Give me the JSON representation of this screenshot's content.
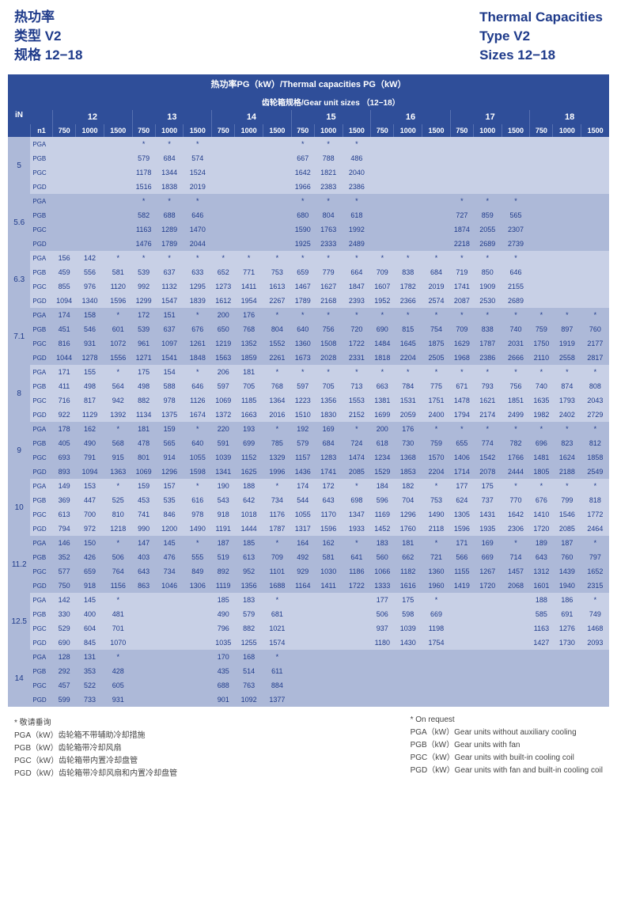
{
  "header": {
    "left": [
      "热功率",
      "类型  V2",
      "规格  12−18"
    ],
    "right": [
      "Thermal Capacities",
      "Type  V2",
      "Sizes  12−18"
    ]
  },
  "table_title": "热功率PG（kW）/Thermal capacities PG（kW）",
  "gear_title": "齿轮箱规格/Gear unit sizes （12−18）",
  "in_label": "iN",
  "n1_label": "n1",
  "sizes": [
    "12",
    "13",
    "14",
    "15",
    "16",
    "17",
    "18"
  ],
  "speeds": [
    "750",
    "1000",
    "1500"
  ],
  "pg_labels": [
    "PGA",
    "PGB",
    "PGC",
    "PGD"
  ],
  "bands": [
    {
      "ratio": "5",
      "band": 0,
      "rows": [
        [
          "",
          "",
          "",
          "*",
          "*",
          "*",
          "",
          "",
          "",
          "*",
          "*",
          "*",
          "",
          "",
          "",
          "",
          "",
          "",
          "",
          "",
          ""
        ],
        [
          "",
          "",
          "",
          "579",
          "684",
          "574",
          "",
          "",
          "",
          "667",
          "788",
          "486",
          "",
          "",
          "",
          "",
          "",
          "",
          "",
          "",
          ""
        ],
        [
          "",
          "",
          "",
          "1178",
          "1344",
          "1524",
          "",
          "",
          "",
          "1642",
          "1821",
          "2040",
          "",
          "",
          "",
          "",
          "",
          "",
          "",
          "",
          ""
        ],
        [
          "",
          "",
          "",
          "1516",
          "1838",
          "2019",
          "",
          "",
          "",
          "1966",
          "2383",
          "2386",
          "",
          "",
          "",
          "",
          "",
          "",
          "",
          "",
          ""
        ]
      ]
    },
    {
      "ratio": "5.6",
      "band": 1,
      "rows": [
        [
          "",
          "",
          "",
          "*",
          "*",
          "*",
          "",
          "",
          "",
          "*",
          "*",
          "*",
          "",
          "",
          "",
          "*",
          "*",
          "*",
          "",
          "",
          ""
        ],
        [
          "",
          "",
          "",
          "582",
          "688",
          "646",
          "",
          "",
          "",
          "680",
          "804",
          "618",
          "",
          "",
          "",
          "727",
          "859",
          "565",
          "",
          "",
          ""
        ],
        [
          "",
          "",
          "",
          "1163",
          "1289",
          "1470",
          "",
          "",
          "",
          "1590",
          "1763",
          "1992",
          "",
          "",
          "",
          "1874",
          "2055",
          "2307",
          "",
          "",
          ""
        ],
        [
          "",
          "",
          "",
          "1476",
          "1789",
          "2044",
          "",
          "",
          "",
          "1925",
          "2333",
          "2489",
          "",
          "",
          "",
          "2218",
          "2689",
          "2739",
          "",
          "",
          ""
        ]
      ]
    },
    {
      "ratio": "6.3",
      "band": 0,
      "rows": [
        [
          "156",
          "142",
          "*",
          "*",
          "*",
          "*",
          "*",
          "*",
          "*",
          "*",
          "*",
          "*",
          "*",
          "*",
          "*",
          "*",
          "*",
          "*",
          "",
          "",
          ""
        ],
        [
          "459",
          "556",
          "581",
          "539",
          "637",
          "633",
          "652",
          "771",
          "753",
          "659",
          "779",
          "664",
          "709",
          "838",
          "684",
          "719",
          "850",
          "646",
          "",
          "",
          ""
        ],
        [
          "855",
          "976",
          "1120",
          "992",
          "1132",
          "1295",
          "1273",
          "1411",
          "1613",
          "1467",
          "1627",
          "1847",
          "1607",
          "1782",
          "2019",
          "1741",
          "1909",
          "2155",
          "",
          "",
          ""
        ],
        [
          "1094",
          "1340",
          "1596",
          "1299",
          "1547",
          "1839",
          "1612",
          "1954",
          "2267",
          "1789",
          "2168",
          "2393",
          "1952",
          "2366",
          "2574",
          "2087",
          "2530",
          "2689",
          "",
          "",
          ""
        ]
      ]
    },
    {
      "ratio": "7.1",
      "band": 1,
      "rows": [
        [
          "174",
          "158",
          "*",
          "172",
          "151",
          "*",
          "200",
          "176",
          "*",
          "*",
          "*",
          "*",
          "*",
          "*",
          "*",
          "*",
          "*",
          "*",
          "*",
          "*",
          "*"
        ],
        [
          "451",
          "546",
          "601",
          "539",
          "637",
          "676",
          "650",
          "768",
          "804",
          "640",
          "756",
          "720",
          "690",
          "815",
          "754",
          "709",
          "838",
          "740",
          "759",
          "897",
          "760"
        ],
        [
          "816",
          "931",
          "1072",
          "961",
          "1097",
          "1261",
          "1219",
          "1352",
          "1552",
          "1360",
          "1508",
          "1722",
          "1484",
          "1645",
          "1875",
          "1629",
          "1787",
          "2031",
          "1750",
          "1919",
          "2177"
        ],
        [
          "1044",
          "1278",
          "1556",
          "1271",
          "1541",
          "1848",
          "1563",
          "1859",
          "2261",
          "1673",
          "2028",
          "2331",
          "1818",
          "2204",
          "2505",
          "1968",
          "2386",
          "2666",
          "2110",
          "2558",
          "2817"
        ]
      ]
    },
    {
      "ratio": "8",
      "band": 0,
      "rows": [
        [
          "171",
          "155",
          "*",
          "175",
          "154",
          "*",
          "206",
          "181",
          "*",
          "*",
          "*",
          "*",
          "*",
          "*",
          "*",
          "*",
          "*",
          "*",
          "*",
          "*",
          "*"
        ],
        [
          "411",
          "498",
          "564",
          "498",
          "588",
          "646",
          "597",
          "705",
          "768",
          "597",
          "705",
          "713",
          "663",
          "784",
          "775",
          "671",
          "793",
          "756",
          "740",
          "874",
          "808"
        ],
        [
          "716",
          "817",
          "942",
          "882",
          "978",
          "1126",
          "1069",
          "1185",
          "1364",
          "1223",
          "1356",
          "1553",
          "1381",
          "1531",
          "1751",
          "1478",
          "1621",
          "1851",
          "1635",
          "1793",
          "2043"
        ],
        [
          "922",
          "1129",
          "1392",
          "1134",
          "1375",
          "1674",
          "1372",
          "1663",
          "2016",
          "1510",
          "1830",
          "2152",
          "1699",
          "2059",
          "2400",
          "1794",
          "2174",
          "2499",
          "1982",
          "2402",
          "2729"
        ]
      ]
    },
    {
      "ratio": "9",
      "band": 1,
      "rows": [
        [
          "178",
          "162",
          "*",
          "181",
          "159",
          "*",
          "220",
          "193",
          "*",
          "192",
          "169",
          "*",
          "200",
          "176",
          "*",
          "*",
          "*",
          "*",
          "*",
          "*",
          "*"
        ],
        [
          "405",
          "490",
          "568",
          "478",
          "565",
          "640",
          "591",
          "699",
          "785",
          "579",
          "684",
          "724",
          "618",
          "730",
          "759",
          "655",
          "774",
          "782",
          "696",
          "823",
          "812"
        ],
        [
          "693",
          "791",
          "915",
          "801",
          "914",
          "1055",
          "1039",
          "1152",
          "1329",
          "1157",
          "1283",
          "1474",
          "1234",
          "1368",
          "1570",
          "1406",
          "1542",
          "1766",
          "1481",
          "1624",
          "1858"
        ],
        [
          "893",
          "1094",
          "1363",
          "1069",
          "1296",
          "1598",
          "1341",
          "1625",
          "1996",
          "1436",
          "1741",
          "2085",
          "1529",
          "1853",
          "2204",
          "1714",
          "2078",
          "2444",
          "1805",
          "2188",
          "2549"
        ]
      ]
    },
    {
      "ratio": "10",
      "band": 0,
      "rows": [
        [
          "149",
          "153",
          "*",
          "159",
          "157",
          "*",
          "190",
          "188",
          "*",
          "174",
          "172",
          "*",
          "184",
          "182",
          "*",
          "177",
          "175",
          "*",
          "*",
          "*",
          "*"
        ],
        [
          "369",
          "447",
          "525",
          "453",
          "535",
          "616",
          "543",
          "642",
          "734",
          "544",
          "643",
          "698",
          "596",
          "704",
          "753",
          "624",
          "737",
          "770",
          "676",
          "799",
          "818"
        ],
        [
          "613",
          "700",
          "810",
          "741",
          "846",
          "978",
          "918",
          "1018",
          "1176",
          "1055",
          "1170",
          "1347",
          "1169",
          "1296",
          "1490",
          "1305",
          "1431",
          "1642",
          "1410",
          "1546",
          "1772"
        ],
        [
          "794",
          "972",
          "1218",
          "990",
          "1200",
          "1490",
          "1191",
          "1444",
          "1787",
          "1317",
          "1596",
          "1933",
          "1452",
          "1760",
          "2118",
          "1596",
          "1935",
          "2306",
          "1720",
          "2085",
          "2464"
        ]
      ]
    },
    {
      "ratio": "11.2",
      "band": 1,
      "rows": [
        [
          "146",
          "150",
          "*",
          "147",
          "145",
          "*",
          "187",
          "185",
          "*",
          "164",
          "162",
          "*",
          "183",
          "181",
          "*",
          "171",
          "169",
          "*",
          "189",
          "187",
          "*"
        ],
        [
          "352",
          "426",
          "506",
          "403",
          "476",
          "555",
          "519",
          "613",
          "709",
          "492",
          "581",
          "641",
          "560",
          "662",
          "721",
          "566",
          "669",
          "714",
          "643",
          "760",
          "797"
        ],
        [
          "577",
          "659",
          "764",
          "643",
          "734",
          "849",
          "892",
          "952",
          "1101",
          "929",
          "1030",
          "1186",
          "1066",
          "1182",
          "1360",
          "1155",
          "1267",
          "1457",
          "1312",
          "1439",
          "1652"
        ],
        [
          "750",
          "918",
          "1156",
          "863",
          "1046",
          "1306",
          "1119",
          "1356",
          "1688",
          "1164",
          "1411",
          "1722",
          "1333",
          "1616",
          "1960",
          "1419",
          "1720",
          "2068",
          "1601",
          "1940",
          "2315"
        ]
      ]
    },
    {
      "ratio": "12.5",
      "band": 0,
      "rows": [
        [
          "142",
          "145",
          "*",
          "",
          "",
          "",
          "185",
          "183",
          "*",
          "",
          "",
          "",
          "177",
          "175",
          "*",
          "",
          "",
          "",
          "188",
          "186",
          "*"
        ],
        [
          "330",
          "400",
          "481",
          "",
          "",
          "",
          "490",
          "579",
          "681",
          "",
          "",
          "",
          "506",
          "598",
          "669",
          "",
          "",
          "",
          "585",
          "691",
          "749"
        ],
        [
          "529",
          "604",
          "701",
          "",
          "",
          "",
          "796",
          "882",
          "1021",
          "",
          "",
          "",
          "937",
          "1039",
          "1198",
          "",
          "",
          "",
          "1163",
          "1276",
          "1468"
        ],
        [
          "690",
          "845",
          "1070",
          "",
          "",
          "",
          "1035",
          "1255",
          "1574",
          "",
          "",
          "",
          "1180",
          "1430",
          "1754",
          "",
          "",
          "",
          "1427",
          "1730",
          "2093"
        ]
      ]
    },
    {
      "ratio": "14",
      "band": 1,
      "rows": [
        [
          "128",
          "131",
          "*",
          "",
          "",
          "",
          "170",
          "168",
          "*",
          "",
          "",
          "",
          "",
          "",
          "",
          "",
          "",
          "",
          "",
          "",
          ""
        ],
        [
          "292",
          "353",
          "428",
          "",
          "",
          "",
          "435",
          "514",
          "611",
          "",
          "",
          "",
          "",
          "",
          "",
          "",
          "",
          "",
          "",
          "",
          ""
        ],
        [
          "457",
          "522",
          "605",
          "",
          "",
          "",
          "688",
          "763",
          "884",
          "",
          "",
          "",
          "",
          "",
          "",
          "",
          "",
          "",
          "",
          "",
          ""
        ],
        [
          "599",
          "733",
          "931",
          "",
          "",
          "",
          "901",
          "1092",
          "1377",
          "",
          "",
          "",
          "",
          "",
          "",
          "",
          "",
          "",
          "",
          "",
          ""
        ]
      ]
    }
  ],
  "footer": {
    "left": [
      "* 敬请垂询",
      "PGA（kW）齿轮箱不带辅助冷却措施",
      "PGB（kW）齿轮箱带冷却风扇",
      "PGC（kW）齿轮箱带内置冷却盘管",
      "PGD（kW）齿轮箱带冷却风扇和内置冷却盘管"
    ],
    "right": [
      "* On request",
      "PGA（kW）Gear units without auxiliary cooling",
      "PGB（kW）Gear units with fan",
      "PGC（kW）Gear units with built-in cooling coil",
      "PGD（kW）Gear units with fan and built-in cooling coil"
    ]
  },
  "style": {
    "header_color": "#1e3a8a",
    "table_header_bg": "#2f4e99",
    "band0_bg": "#c8d0e6",
    "band1_bg": "#adb9d8",
    "text_color": "#1e3a8a"
  }
}
